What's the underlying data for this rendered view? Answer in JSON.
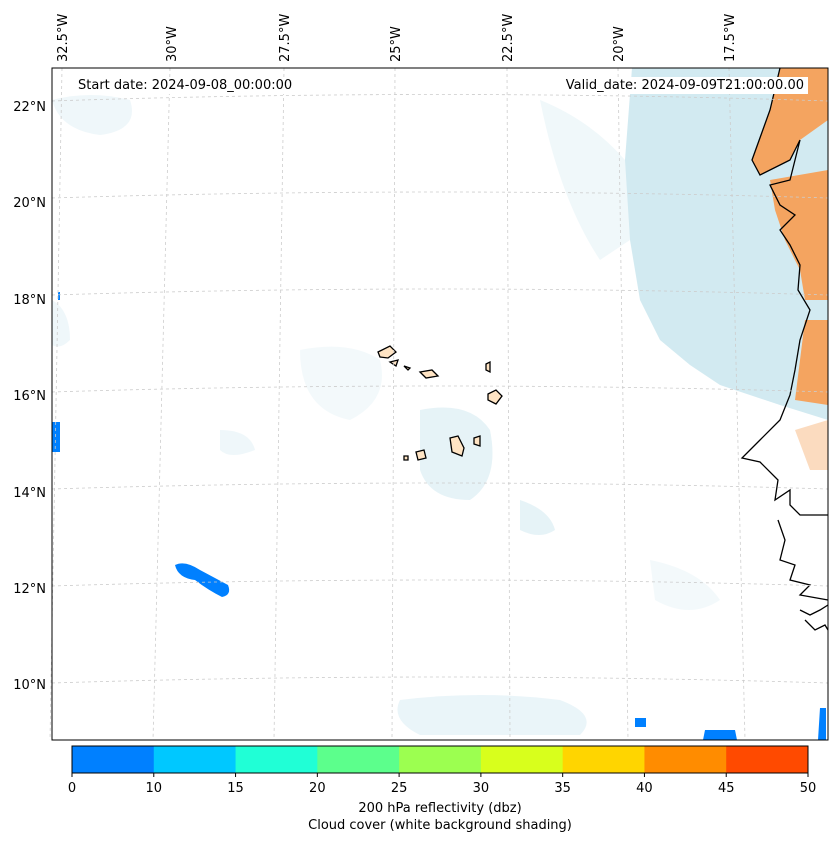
{
  "header": {
    "start_date": "Start date: 2024-09-08_00:00:00",
    "valid_date": "Valid_date: 2024-09-09T21:00:00.00"
  },
  "axes": {
    "lon_labels": [
      "32.5°W",
      "30°W",
      "27.5°W",
      "25°W",
      "22.5°W",
      "20°W",
      "17.5°W"
    ],
    "lat_labels": [
      "22°N",
      "20°N",
      "18°N",
      "16°N",
      "14°N",
      "12°N",
      "10°N"
    ]
  },
  "colorbar": {
    "ticks": [
      "0",
      "10",
      "15",
      "20",
      "25",
      "30",
      "35",
      "40",
      "45",
      "50"
    ],
    "colors": [
      "#0080ff",
      "#00c8ff",
      "#20ffd6",
      "#5cff8c",
      "#9cff50",
      "#d8ff1c",
      "#ffd500",
      "#ff8c00",
      "#ff4a00"
    ],
    "label_line1": "200 hPa reflectivity (dbz)",
    "label_line2": "Cloud cover (white background shading)"
  },
  "colors": {
    "cloud": "#add8e6",
    "land": "#f4a460",
    "coast": "#000000",
    "grid": "#cccccc"
  }
}
